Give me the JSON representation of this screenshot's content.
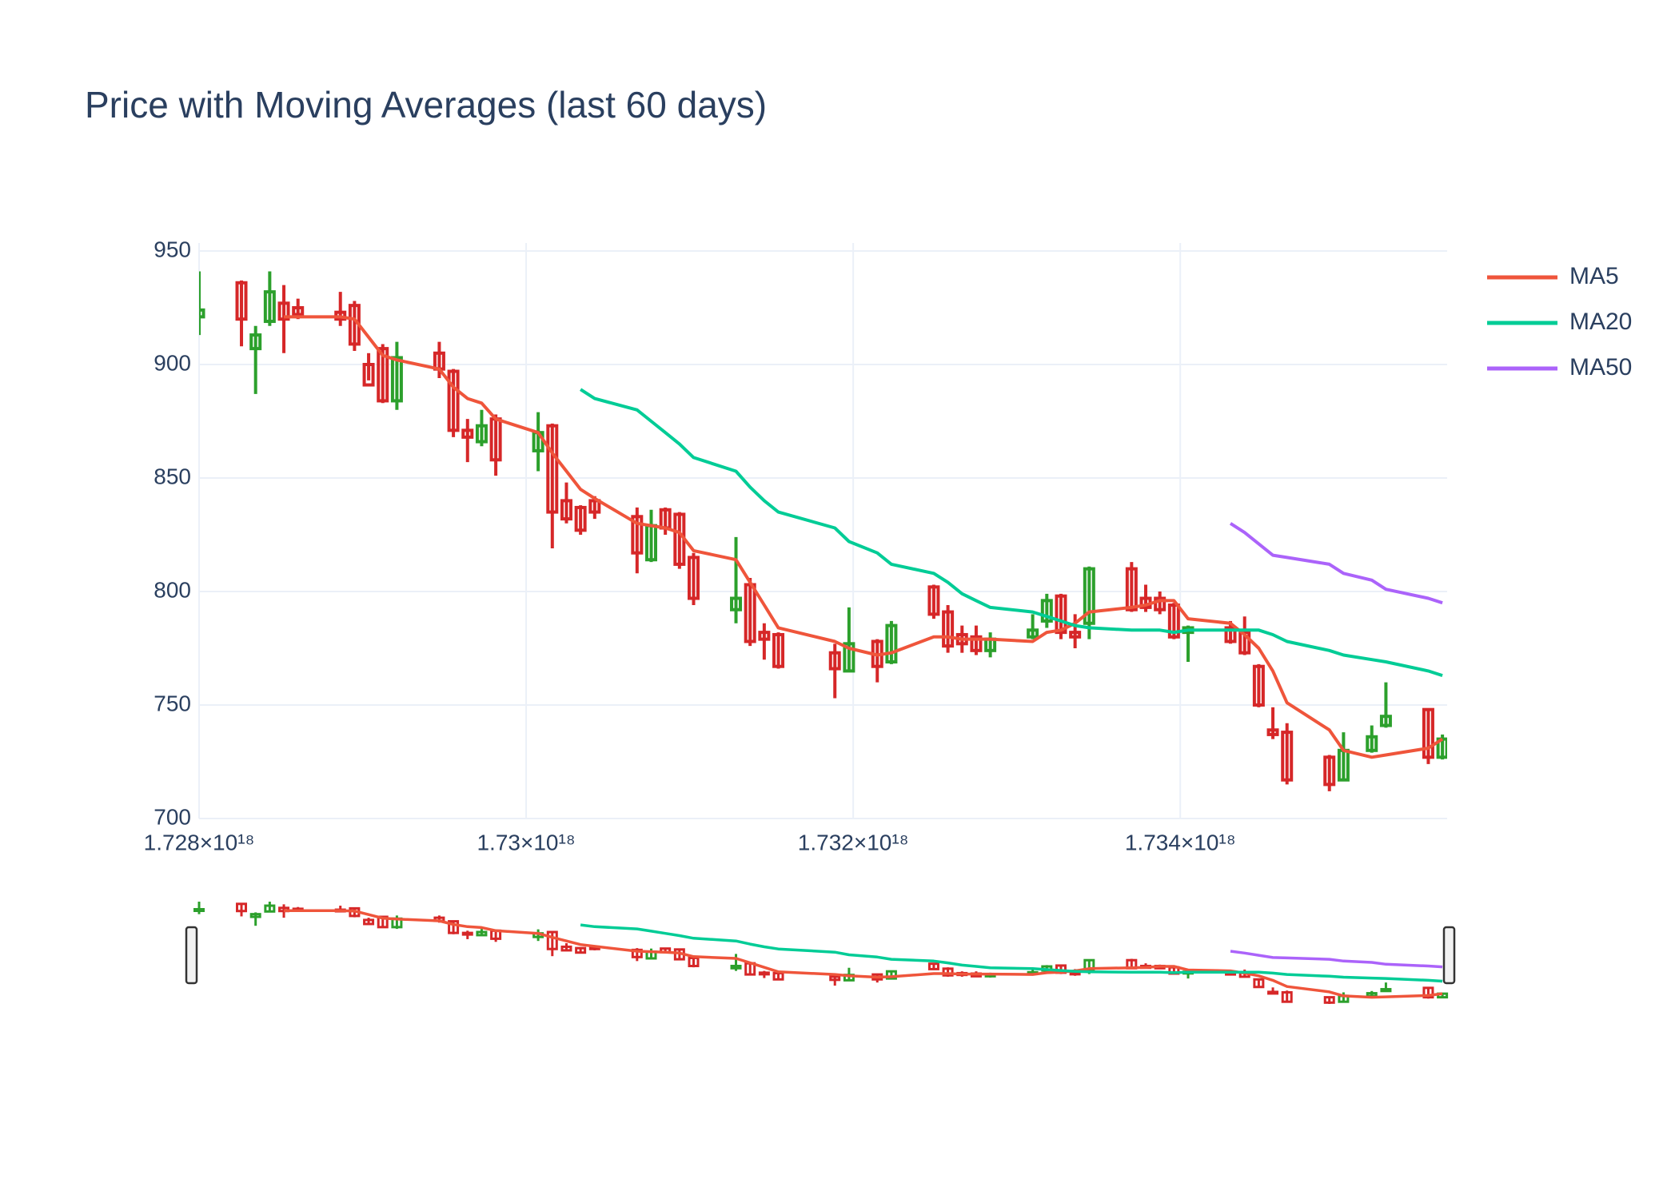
{
  "chart_data": {
    "type": "candlestick",
    "title": "Price with Moving Averages (last 60 days)",
    "x": [
      1728000000000000000,
      1728259200000000000,
      1728345600000000000,
      1728432000000000000,
      1728518400000000000,
      1728604800000000000,
      1728864000000000000,
      1728950400000000000,
      1729036800000000000,
      1729123200000000000,
      1729209600000000000,
      1729468800000000000,
      1729555200000000000,
      1729641600000000000,
      1729728000000000000,
      1729814400000000000,
      1730073600000000000,
      1730160000000000000,
      1730246400000000000,
      1730332800000000000,
      1730419200000000000,
      1730678400000000000,
      1730764800000000000,
      1730851200000000000,
      1730937600000000000,
      1731024000000000000,
      1731283200000000000,
      1731369600000000000,
      1731456000000000000,
      1731542400000000000,
      1731888000000000000,
      1731974400000000000,
      1732147200000000000,
      1732233600000000000,
      1732492800000000000,
      1732579200000000000,
      1732665600000000000,
      1732752000000000000,
      1732838400000000000,
      1733097600000000000,
      1733184000000000000,
      1733270400000000000,
      1733356800000000000,
      1733443200000000000,
      1733702400000000000,
      1733788800000000000,
      1733875200000000000,
      1733961600000000000,
      1734048000000000000,
      1734307200000000000,
      1734393600000000000,
      1734480000000000000,
      1734566400000000000,
      1734652800000000000,
      1734912000000000000,
      1734998400000000000,
      1735171200000000000,
      1735257600000000000,
      1735516800000000000,
      1735603200000000000
    ],
    "open": [
      921,
      936,
      907,
      919,
      927,
      925,
      923,
      926,
      900,
      907,
      884,
      905,
      897,
      871,
      866,
      876,
      862,
      873,
      840,
      837,
      840,
      833,
      814,
      836,
      834,
      815,
      792,
      803,
      782,
      781,
      773,
      765,
      778,
      769,
      802,
      791,
      781,
      780,
      774,
      780,
      787,
      798,
      782,
      786,
      810,
      797,
      797,
      794,
      782,
      784,
      782,
      767,
      739,
      738,
      727,
      717,
      730,
      741,
      748,
      727
    ],
    "high": [
      941,
      937,
      917,
      941,
      935,
      929,
      932,
      928,
      905,
      909,
      910,
      910,
      898,
      876,
      880,
      878,
      879,
      874,
      848,
      838,
      842,
      837,
      836,
      837,
      835,
      817,
      824,
      806,
      786,
      782,
      777,
      793,
      779,
      787,
      803,
      794,
      785,
      785,
      782,
      790,
      799,
      799,
      790,
      811,
      813,
      803,
      800,
      795,
      785,
      787,
      789,
      768,
      749,
      742,
      728,
      738,
      741,
      760,
      748,
      737
    ],
    "low": [
      913,
      908,
      887,
      917,
      905,
      920,
      917,
      906,
      893,
      883,
      880,
      894,
      868,
      857,
      864,
      851,
      853,
      819,
      830,
      825,
      832,
      808,
      813,
      825,
      810,
      794,
      786,
      776,
      770,
      766,
      753,
      765,
      760,
      768,
      788,
      773,
      773,
      772,
      771,
      779,
      784,
      779,
      775,
      779,
      791,
      791,
      790,
      779,
      769,
      777,
      772,
      749,
      735,
      715,
      712,
      717,
      729,
      740,
      724,
      726
    ],
    "close": [
      924,
      920,
      913,
      932,
      920,
      922,
      920,
      909,
      891,
      884,
      903,
      898,
      871,
      868,
      873,
      858,
      870,
      835,
      832,
      827,
      835,
      817,
      829,
      828,
      812,
      797,
      797,
      778,
      779,
      767,
      766,
      777,
      767,
      785,
      790,
      776,
      777,
      774,
      779,
      783,
      796,
      782,
      780,
      810,
      792,
      793,
      792,
      780,
      784,
      778,
      773,
      750,
      737,
      717,
      715,
      730,
      736,
      745,
      727,
      735
    ],
    "increasing_color": "#2ca02c",
    "decreasing_color": "#d62728",
    "series": [
      {
        "name": "MA5",
        "color": "#ef553b",
        "values": [
          null,
          null,
          null,
          null,
          921,
          921,
          921,
          920,
          912,
          904,
          902,
          898,
          890,
          885,
          883,
          876,
          870,
          861,
          853,
          845,
          841,
          830,
          829,
          828,
          826,
          818,
          814,
          804,
          794,
          784,
          778,
          775,
          772,
          773,
          780,
          780,
          779,
          779,
          779,
          778,
          782,
          783,
          786,
          791,
          793,
          794,
          796,
          796,
          788,
          786,
          781,
          775,
          765,
          751,
          739,
          730,
          727,
          728,
          731,
          735
        ]
      },
      {
        "name": "MA20",
        "color": "#00cc96",
        "values": [
          null,
          null,
          null,
          null,
          null,
          null,
          null,
          null,
          null,
          null,
          null,
          null,
          null,
          null,
          null,
          null,
          null,
          null,
          null,
          889,
          885,
          880,
          875,
          870,
          865,
          859,
          853,
          846,
          840,
          835,
          828,
          822,
          817,
          812,
          808,
          804,
          799,
          796,
          793,
          791,
          789,
          787,
          785,
          784,
          783,
          783,
          783,
          782,
          783,
          783,
          783,
          783,
          781,
          778,
          774,
          772,
          770,
          769,
          765,
          763
        ]
      },
      {
        "name": "MA50",
        "color": "#ab63fa",
        "values": [
          null,
          null,
          null,
          null,
          null,
          null,
          null,
          null,
          null,
          null,
          null,
          null,
          null,
          null,
          null,
          null,
          null,
          null,
          null,
          null,
          null,
          null,
          null,
          null,
          null,
          null,
          null,
          null,
          null,
          null,
          null,
          null,
          null,
          null,
          null,
          null,
          null,
          null,
          null,
          null,
          null,
          null,
          null,
          null,
          null,
          null,
          null,
          null,
          null,
          830,
          826,
          821,
          816,
          815,
          812,
          808,
          805,
          801,
          797,
          795
        ]
      }
    ],
    "xlim": [
      1728000000000000000,
      1735632000000000000
    ],
    "xticks": [
      {
        "value": 1728000000000000000,
        "label": "1.728×10¹⁸"
      },
      {
        "value": 1730000000000000000,
        "label": "1.73×10¹⁸"
      },
      {
        "value": 1732000000000000000,
        "label": "1.732×10¹⁸"
      },
      {
        "value": 1734000000000000000,
        "label": "1.734×10¹⁸"
      }
    ],
    "ylim": [
      700,
      950
    ],
    "yticks": [
      700,
      750,
      800,
      850,
      900,
      950
    ],
    "grid": true,
    "legend": "right",
    "rangeslider": true
  }
}
